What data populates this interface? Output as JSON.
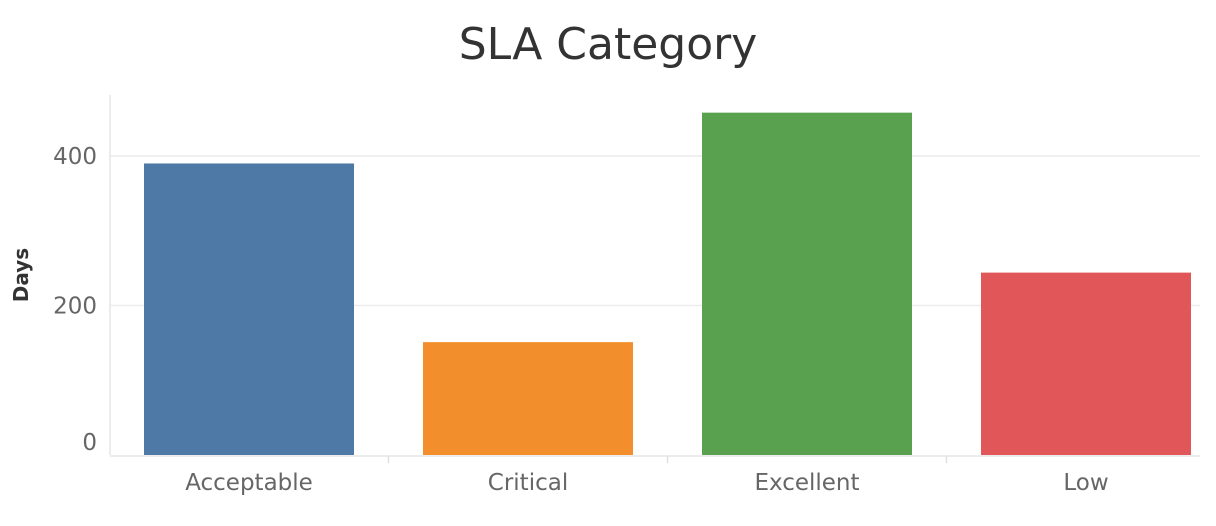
{
  "chart_data": {
    "type": "bar",
    "title": "SLA Category",
    "xlabel": "",
    "ylabel": "Days",
    "categories": [
      "Acceptable",
      "Critical",
      "Excellent",
      "Low"
    ],
    "values": [
      390,
      151,
      458,
      244
    ],
    "colors": [
      "#4e79a7",
      "#f28e2b",
      "#59a14f",
      "#e15759"
    ],
    "ylim": [
      0,
      480
    ],
    "yticks": [
      0,
      200,
      400
    ],
    "ytick_labels": [
      "0",
      "200",
      "400"
    ],
    "grid": true,
    "legend": "none"
  }
}
